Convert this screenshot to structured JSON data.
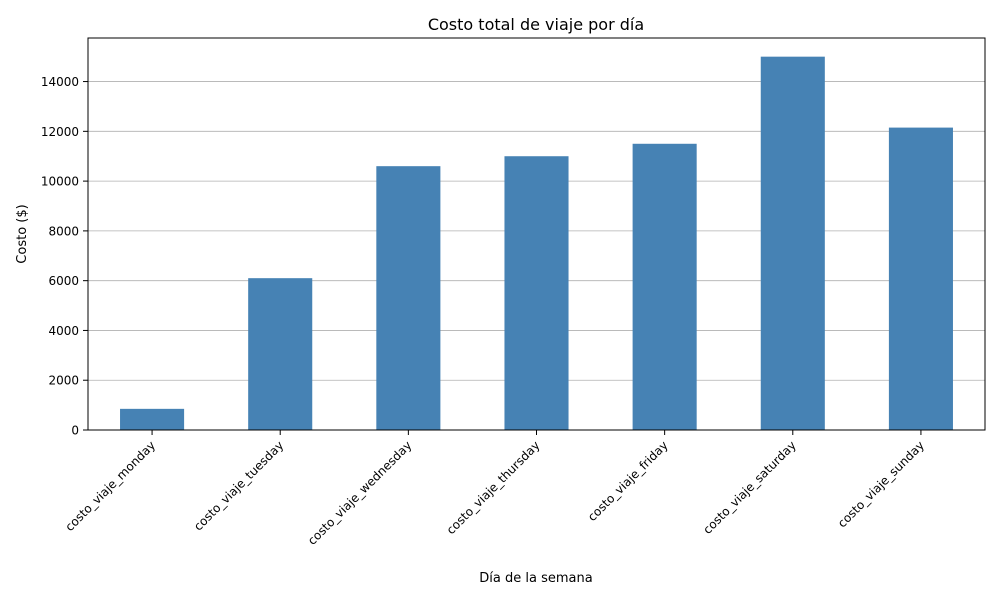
{
  "chart_data": {
    "type": "bar",
    "title": "Costo total de viaje por día",
    "xlabel": "Día de la semana",
    "ylabel": "Costo ($)",
    "categories": [
      "costo_viaje_monday",
      "costo_viaje_tuesday",
      "costo_viaje_wednesday",
      "costo_viaje_thursday",
      "costo_viaje_friday",
      "costo_viaje_saturday",
      "costo_viaje_sunday"
    ],
    "series": [
      {
        "values": [
          850,
          6100,
          10600,
          11000,
          11500,
          15000,
          12150
        ]
      }
    ],
    "ylim": [
      0,
      15750
    ],
    "yticks": [
      0,
      2000,
      4000,
      6000,
      8000,
      10000,
      12000,
      14000
    ],
    "ytick_labels": [
      "0",
      "2000",
      "4000",
      "6000",
      "8000",
      "10000",
      "12000",
      "14000"
    ],
    "grid": "y-axis",
    "legend": "none",
    "x_tick_rotation": 45,
    "colors": {
      "bar": "#4682b4",
      "grid": "#b0b0b0",
      "axis": "#000000"
    }
  }
}
